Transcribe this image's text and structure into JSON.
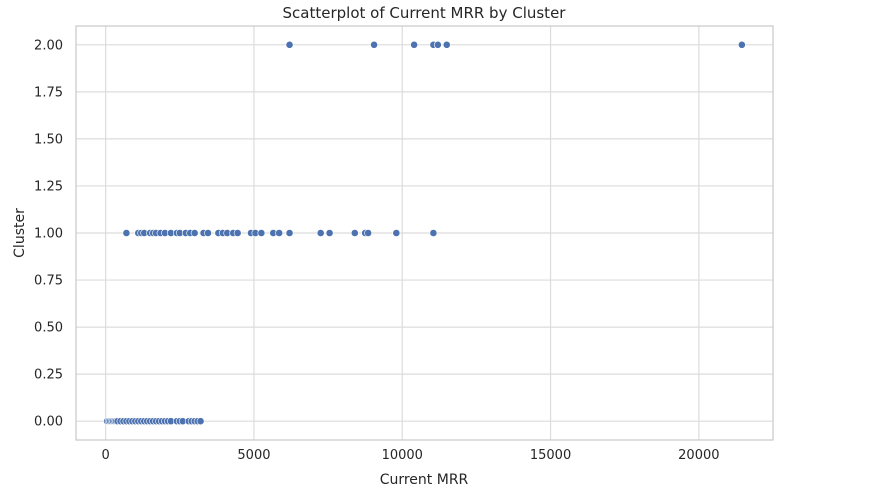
{
  "chart_data": {
    "type": "scatter",
    "title": "Scatterplot of Current MRR by Cluster",
    "xlabel": "Current MRR",
    "ylabel": "Cluster",
    "xlim": [
      -1000,
      22500
    ],
    "ylim": [
      -0.1,
      2.1
    ],
    "x_ticks": [
      0,
      5000,
      10000,
      15000,
      20000
    ],
    "x_tick_labels": [
      "0",
      "5000",
      "10000",
      "15000",
      "20000"
    ],
    "y_ticks": [
      0,
      0.25,
      0.5,
      0.75,
      1.0,
      1.25,
      1.5,
      1.75,
      2.0
    ],
    "y_tick_labels": [
      "0.00",
      "0.25",
      "0.50",
      "0.75",
      "1.00",
      "1.25",
      "1.50",
      "1.75",
      "2.00"
    ],
    "grid": true,
    "marker_color": "#4c72b0",
    "points": [
      {
        "x": 50,
        "y": 0
      },
      {
        "x": 100,
        "y": 0
      },
      {
        "x": 150,
        "y": 0
      },
      {
        "x": 200,
        "y": 0
      },
      {
        "x": 250,
        "y": 0
      },
      {
        "x": 300,
        "y": 0
      },
      {
        "x": 350,
        "y": 0
      },
      {
        "x": 400,
        "y": 0
      },
      {
        "x": 500,
        "y": 0
      },
      {
        "x": 600,
        "y": 0
      },
      {
        "x": 700,
        "y": 0
      },
      {
        "x": 800,
        "y": 0
      },
      {
        "x": 900,
        "y": 0
      },
      {
        "x": 1000,
        "y": 0
      },
      {
        "x": 1100,
        "y": 0
      },
      {
        "x": 1200,
        "y": 0
      },
      {
        "x": 1300,
        "y": 0
      },
      {
        "x": 1400,
        "y": 0
      },
      {
        "x": 1500,
        "y": 0
      },
      {
        "x": 1600,
        "y": 0
      },
      {
        "x": 1700,
        "y": 0
      },
      {
        "x": 1800,
        "y": 0
      },
      {
        "x": 1900,
        "y": 0
      },
      {
        "x": 2000,
        "y": 0
      },
      {
        "x": 2100,
        "y": 0
      },
      {
        "x": 2200,
        "y": 0
      },
      {
        "x": 2400,
        "y": 0
      },
      {
        "x": 2500,
        "y": 0
      },
      {
        "x": 2600,
        "y": 0
      },
      {
        "x": 2800,
        "y": 0
      },
      {
        "x": 2900,
        "y": 0
      },
      {
        "x": 3000,
        "y": 0
      },
      {
        "x": 3100,
        "y": 0
      },
      {
        "x": 3200,
        "y": 0
      },
      {
        "x": 700,
        "y": 1
      },
      {
        "x": 1100,
        "y": 1
      },
      {
        "x": 1200,
        "y": 1
      },
      {
        "x": 1300,
        "y": 1
      },
      {
        "x": 1500,
        "y": 1
      },
      {
        "x": 1600,
        "y": 1
      },
      {
        "x": 1700,
        "y": 1
      },
      {
        "x": 1850,
        "y": 1
      },
      {
        "x": 2000,
        "y": 1
      },
      {
        "x": 2200,
        "y": 1
      },
      {
        "x": 2400,
        "y": 1
      },
      {
        "x": 2500,
        "y": 1
      },
      {
        "x": 2700,
        "y": 1
      },
      {
        "x": 2850,
        "y": 1
      },
      {
        "x": 3000,
        "y": 1
      },
      {
        "x": 3300,
        "y": 1
      },
      {
        "x": 3450,
        "y": 1
      },
      {
        "x": 3800,
        "y": 1
      },
      {
        "x": 3950,
        "y": 1
      },
      {
        "x": 4100,
        "y": 1
      },
      {
        "x": 4300,
        "y": 1
      },
      {
        "x": 4450,
        "y": 1
      },
      {
        "x": 4900,
        "y": 1
      },
      {
        "x": 5050,
        "y": 1
      },
      {
        "x": 5250,
        "y": 1
      },
      {
        "x": 5650,
        "y": 1
      },
      {
        "x": 5850,
        "y": 1
      },
      {
        "x": 6200,
        "y": 1
      },
      {
        "x": 7250,
        "y": 1
      },
      {
        "x": 7550,
        "y": 1
      },
      {
        "x": 8400,
        "y": 1
      },
      {
        "x": 8750,
        "y": 1
      },
      {
        "x": 8850,
        "y": 1
      },
      {
        "x": 9800,
        "y": 1
      },
      {
        "x": 11050,
        "y": 1
      },
      {
        "x": 6200,
        "y": 2
      },
      {
        "x": 9050,
        "y": 2
      },
      {
        "x": 10400,
        "y": 2
      },
      {
        "x": 11050,
        "y": 2
      },
      {
        "x": 11200,
        "y": 2
      },
      {
        "x": 11500,
        "y": 2
      },
      {
        "x": 21450,
        "y": 2
      }
    ]
  }
}
